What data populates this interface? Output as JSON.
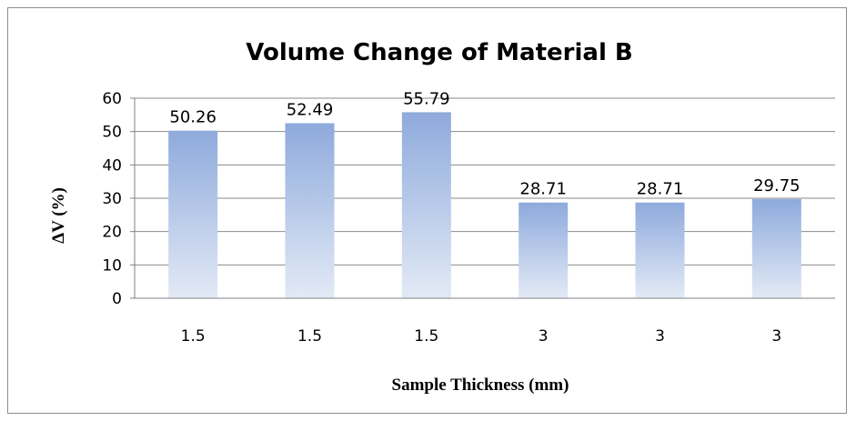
{
  "chart_data": {
    "type": "bar",
    "title": "Volume Change of Material B",
    "xlabel": "Sample Thickness  (mm)",
    "ylabel": "ΔV (%)",
    "categories": [
      "1.5",
      "1.5",
      "1.5",
      "3",
      "3",
      "3"
    ],
    "values": [
      50.26,
      52.49,
      55.79,
      28.71,
      28.71,
      29.75
    ],
    "data_labels": [
      "50.26",
      "52.49",
      "55.79",
      "28.71",
      "28.71",
      "29.75"
    ],
    "ylim": [
      0,
      60
    ],
    "yticks": [
      "0",
      "10",
      "20",
      "30",
      "40",
      "50",
      "60"
    ],
    "grid": true,
    "legend": "none",
    "colors": {
      "bar_top": "#8eaadc",
      "bar_bottom": "#e3eaf6",
      "gridline": "#8a8a8a",
      "frame": "#8c8c8c"
    }
  }
}
